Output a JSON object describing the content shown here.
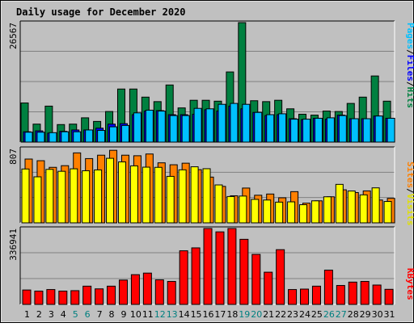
{
  "title": "Daily usage for December 2020",
  "colors": {
    "background": "#c0c0c0",
    "title": "#0000c0",
    "hits": "#008040",
    "files": "#0000ff",
    "pages": "#00c0ff",
    "visits": "#ffff00",
    "sites": "#ff8000",
    "kbytes": "#ff0000",
    "weekend_label": "#008080",
    "weekday_label": "#000000",
    "grid": "#808080"
  },
  "right_labels": {
    "top": {
      "pages": "Pages",
      "files": "Files",
      "hits": "Hits",
      "sep": "/"
    },
    "middle": {
      "sites": "Sites",
      "visits": "Visits",
      "sep": "/"
    },
    "bottom": {
      "kbytes": "KBytes"
    }
  },
  "chart_data": [
    {
      "type": "bar",
      "panel": "hits-files-pages",
      "ymax_label": "26567",
      "ylim": [
        0,
        26567
      ],
      "categories": [
        "1",
        "2",
        "3",
        "4",
        "5",
        "6",
        "7",
        "8",
        "9",
        "10",
        "11",
        "12",
        "13",
        "14",
        "15",
        "16",
        "17",
        "18",
        "19",
        "20",
        "21",
        "22",
        "23",
        "24",
        "25",
        "26",
        "27",
        "28",
        "29",
        "30",
        "31"
      ],
      "series": [
        {
          "name": "Hits",
          "values": [
            8700,
            4000,
            8000,
            3900,
            4000,
            5400,
            4600,
            6800,
            11800,
            11800,
            10000,
            9000,
            12700,
            7600,
            9300,
            9300,
            9100,
            15600,
            26567,
            9200,
            9000,
            9300,
            7400,
            6200,
            6000,
            6900,
            6800,
            8600,
            10000,
            14700,
            9100
          ]
        },
        {
          "name": "Files",
          "values": [
            2300,
            2500,
            2000,
            2400,
            2700,
            2700,
            3100,
            4000,
            4100,
            6100,
            6900,
            7000,
            6100,
            6100,
            6200,
            7200,
            6900,
            8000,
            7400,
            6600,
            5900,
            6100,
            5200,
            5000,
            5300,
            5100,
            6000,
            5200,
            5200,
            5800,
            5300
          ]
        },
        {
          "name": "Pages",
          "values": [
            2200,
            2200,
            2100,
            2300,
            2300,
            2700,
            2600,
            3400,
            3700,
            6500,
            7100,
            6900,
            5900,
            5900,
            7500,
            7400,
            8400,
            8600,
            8400,
            6600,
            6100,
            6300,
            5100,
            5100,
            5300,
            5400,
            5900,
            5200,
            5200,
            5800,
            5300
          ]
        }
      ]
    },
    {
      "type": "bar",
      "panel": "visits-sites",
      "ymax_label": "807",
      "ylim": [
        0,
        807
      ],
      "categories": [
        "1",
        "2",
        "3",
        "4",
        "5",
        "6",
        "7",
        "8",
        "9",
        "10",
        "11",
        "12",
        "13",
        "14",
        "15",
        "16",
        "17",
        "18",
        "19",
        "20",
        "21",
        "22",
        "23",
        "24",
        "25",
        "26",
        "27",
        "28",
        "29",
        "30",
        "31"
      ],
      "series": [
        {
          "name": "Visits",
          "values": [
            585,
            500,
            581,
            560,
            587,
            566,
            575,
            701,
            662,
            619,
            605,
            603,
            505,
            576,
            609,
            588,
            412,
            286,
            291,
            255,
            248,
            225,
            228,
            197,
            239,
            283,
            418,
            346,
            304,
            380,
            232
          ]
        },
        {
          "name": "Sites",
          "values": [
            693,
            675,
            603,
            621,
            760,
            698,
            735,
            788,
            735,
            729,
            748,
            652,
            631,
            648,
            578,
            497,
            396,
            294,
            378,
            300,
            313,
            272,
            339,
            214,
            239,
            283,
            359,
            329,
            347,
            248,
            266
          ]
        }
      ]
    },
    {
      "type": "bar",
      "panel": "kbytes",
      "ymax_label": "336941",
      "ylim": [
        0,
        336941
      ],
      "categories": [
        "1",
        "2",
        "3",
        "4",
        "5",
        "6",
        "7",
        "8",
        "9",
        "10",
        "11",
        "12",
        "13",
        "14",
        "15",
        "16",
        "17",
        "18",
        "19",
        "20",
        "21",
        "22",
        "23",
        "24",
        "25",
        "26",
        "27",
        "28",
        "29",
        "30",
        "31"
      ],
      "series": [
        {
          "name": "KBytes",
          "values": [
            64000,
            59000,
            66000,
            59000,
            61000,
            81000,
            69000,
            81000,
            108000,
            132000,
            139000,
            109000,
            102000,
            238000,
            251000,
            336941,
            322000,
            336941,
            289000,
            222000,
            143000,
            243000,
            66000,
            68000,
            81000,
            152000,
            84000,
            99000,
            102000,
            86000,
            67000
          ]
        }
      ]
    }
  ],
  "weekend_days": [
    5,
    6,
    12,
    13,
    19,
    20,
    26,
    27
  ]
}
